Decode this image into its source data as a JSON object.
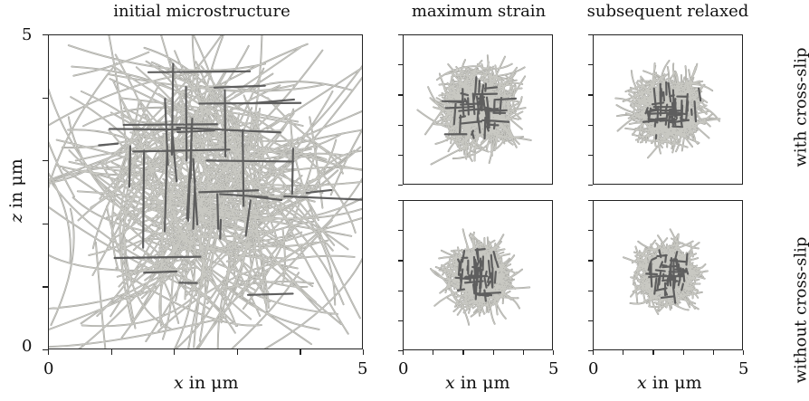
{
  "column_titles": {
    "initial": "initial microstructure",
    "max_strain": "maximum strain",
    "relaxed": "subsequent relaxed"
  },
  "row_labels": {
    "with": "with cross-slip",
    "without": "without cross-slip"
  },
  "axes": {
    "x_var": "x",
    "z_var": "z",
    "unit": "in μm",
    "x_ticks": [
      "0",
      "5"
    ],
    "z_ticks": [
      "0",
      "5"
    ]
  },
  "colors": {
    "line_light": "#c8c8c2",
    "line_mid": "#9a9a96",
    "line_dark": "#5e5e5e",
    "frame": "#222222"
  }
}
